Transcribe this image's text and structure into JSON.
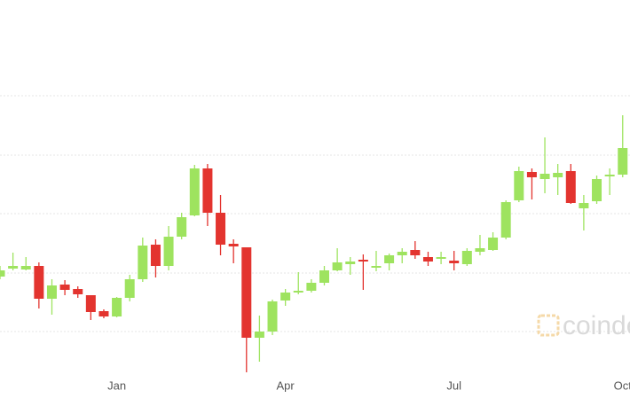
{
  "chart_data": {
    "type": "candlestick",
    "categories": [
      null,
      null,
      null,
      null,
      null,
      null,
      null,
      null,
      null,
      "Jan",
      null,
      null,
      null,
      null,
      null,
      null,
      null,
      null,
      null,
      null,
      null,
      null,
      "Apr",
      null,
      null,
      null,
      null,
      null,
      null,
      null,
      null,
      null,
      null,
      null,
      null,
      "Jul",
      null,
      null,
      null,
      null,
      null,
      null,
      null,
      null,
      null,
      null,
      null,
      null,
      "Oct"
    ],
    "open": [
      146,
      155,
      154,
      158,
      121,
      137,
      132,
      125,
      107,
      101,
      122,
      143,
      182,
      158,
      191,
      215,
      268,
      218,
      183,
      179,
      77,
      84,
      119,
      128,
      130,
      139,
      153,
      160,
      165,
      156,
      161,
      170,
      176,
      168,
      166,
      164,
      160,
      174,
      176,
      190,
      232,
      264,
      256,
      258,
      265,
      223,
      231,
      259,
      261
    ],
    "high": [
      158,
      173,
      168,
      162,
      143,
      142,
      135,
      125,
      109,
      123,
      148,
      190,
      188,
      203,
      218,
      272,
      273,
      238,
      188,
      179,
      102,
      120,
      132,
      151,
      143,
      158,
      178,
      168,
      171,
      175,
      172,
      178,
      186,
      174,
      174,
      175,
      178,
      193,
      196,
      232,
      270,
      268,
      303,
      273,
      273,
      238,
      260,
      268,
      328
    ],
    "low": [
      143,
      153,
      153,
      110,
      103,
      125,
      122,
      97,
      99,
      100,
      118,
      140,
      145,
      153,
      188,
      214,
      203,
      170,
      161,
      38,
      50,
      80,
      113,
      126,
      128,
      136,
      152,
      148,
      131,
      152,
      153,
      161,
      166,
      158,
      160,
      153,
      158,
      170,
      175,
      188,
      230,
      233,
      240,
      238,
      228,
      198,
      228,
      238,
      258
    ],
    "close": [
      153,
      158,
      158,
      121,
      136,
      131,
      126,
      106,
      101,
      122,
      143,
      181,
      158,
      191,
      213,
      268,
      218,
      182,
      180,
      77,
      84,
      118,
      128,
      130,
      139,
      153,
      162,
      163,
      163,
      158,
      170,
      174,
      170,
      163,
      168,
      161,
      175,
      178,
      190,
      230,
      265,
      258,
      262,
      263,
      229,
      229,
      256,
      261,
      291
    ],
    "ylim": [
      0,
      458
    ],
    "up_color": "#9ee35f",
    "down_color": "#e3342f",
    "watermark": "coindesk"
  }
}
